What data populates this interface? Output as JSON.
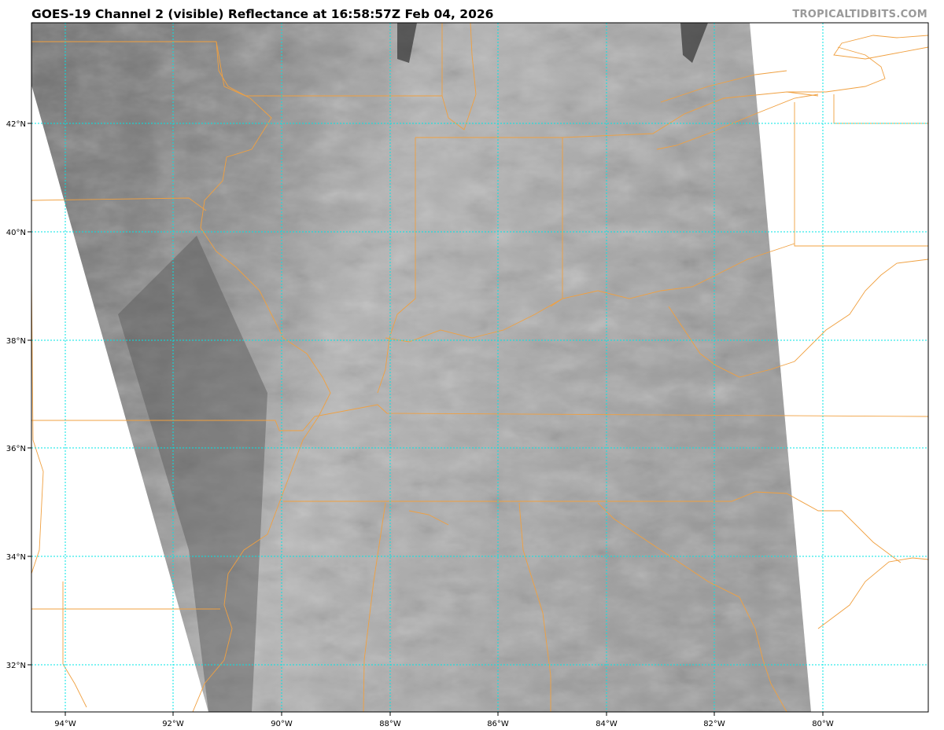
{
  "title": "GOES-19 Channel 2 (visible) Reflectance at 16:58:57Z Feb 04, 2026",
  "credit": "TROPICALTIDBITS.COM",
  "map": {
    "longitude_labels": [
      "94°W",
      "92°W",
      "90°W",
      "88°W",
      "86°W",
      "84°W",
      "82°W",
      "80°W"
    ],
    "latitude_labels": [
      "42°N",
      "40°N",
      "38°N",
      "36°N",
      "34°N",
      "32°N"
    ],
    "colors": {
      "gridlines": "#00e5e5",
      "borders": "#f0a040",
      "background": "#ffffff"
    },
    "imagery": "grayscale visible satellite reflectance"
  }
}
